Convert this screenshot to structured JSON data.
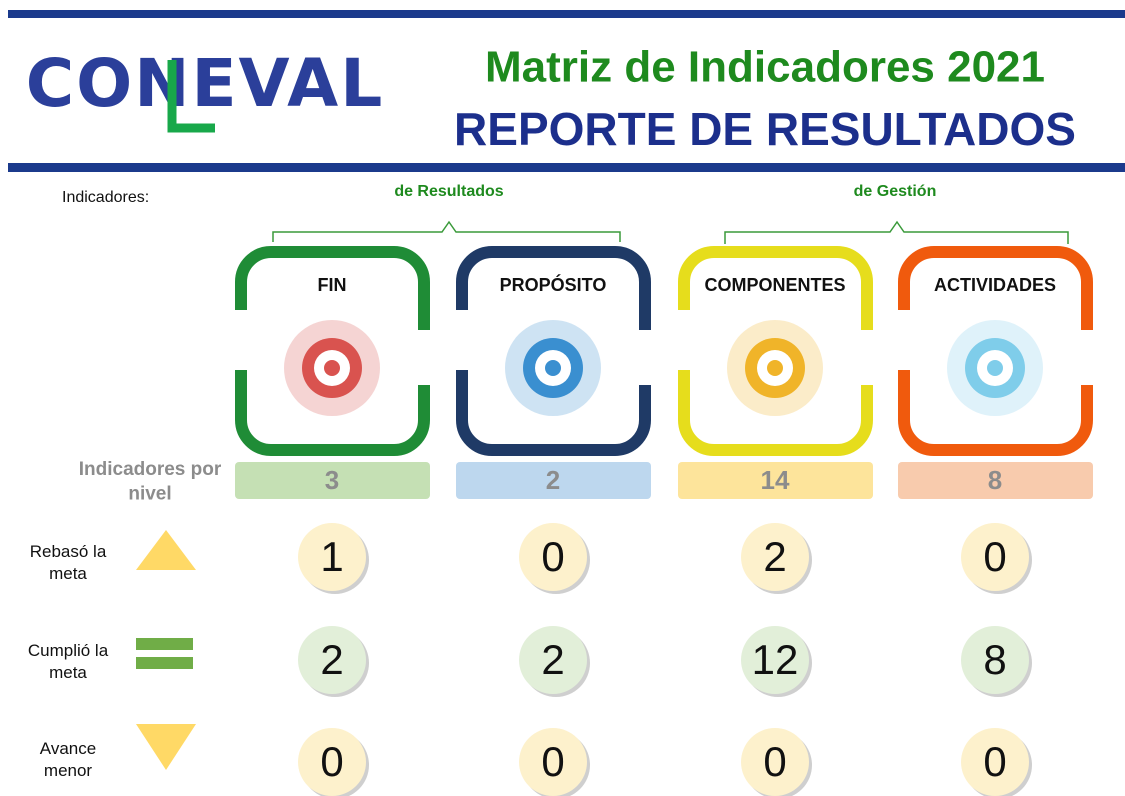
{
  "header": {
    "logo": "CONEVAL",
    "title": "Matriz de Indicadores 2021",
    "subtitle": "REPORTE DE RESULTADOS"
  },
  "indicators_label": "Indicadores:",
  "groups": [
    "de Resultados",
    "de Gestión"
  ],
  "row_labels": {
    "total": "Indicadores por nivel",
    "exceeded": "Rebasó la meta",
    "met": "Cumplió la meta",
    "below": "Avance menor"
  },
  "levels": [
    {
      "name": "FIN",
      "total": 3,
      "exceeded": 1,
      "met": 2,
      "below": 0
    },
    {
      "name": "PROPÓSITO",
      "total": 2,
      "exceeded": 0,
      "met": 2,
      "below": 0
    },
    {
      "name": "COMPONENTES",
      "total": 14,
      "exceeded": 2,
      "met": 12,
      "below": 0
    },
    {
      "name": "ACTIVIDADES",
      "total": 8,
      "exceeded": 0,
      "met": 8,
      "below": 0
    }
  ]
}
